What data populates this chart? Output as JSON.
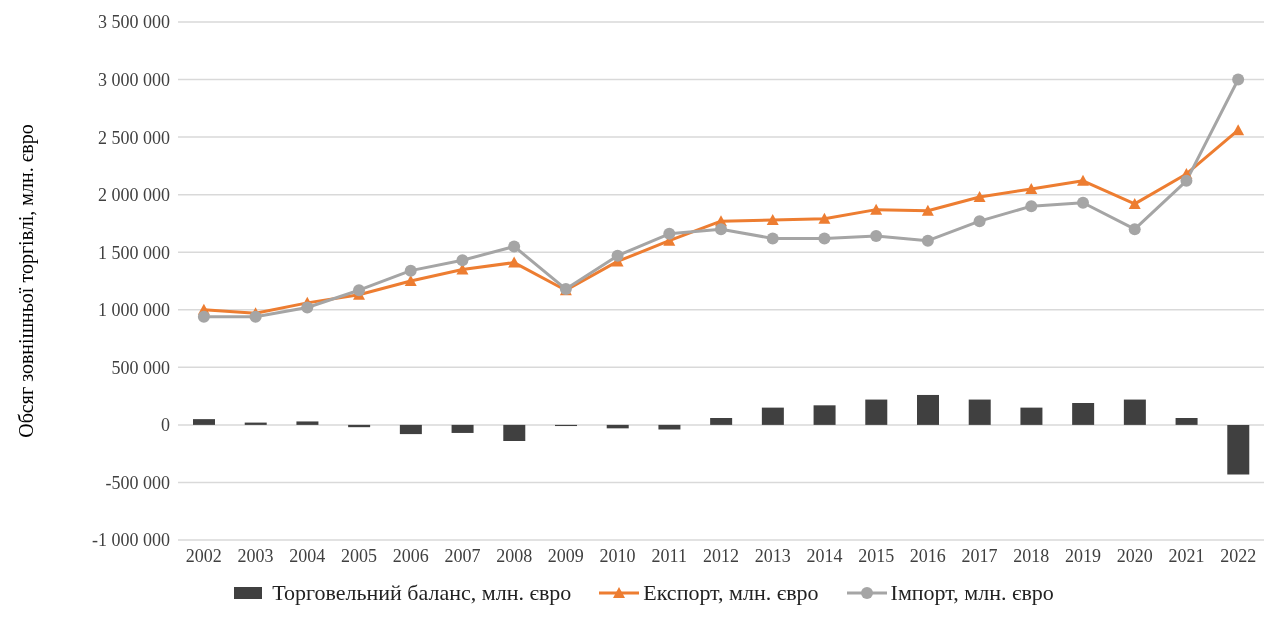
{
  "chart_data": {
    "type": "line",
    "ylabel": "Обсяг зовнішньої торгівлі, млн. євро",
    "categories": [
      "2002",
      "2003",
      "2004",
      "2005",
      "2006",
      "2007",
      "2008",
      "2009",
      "2010",
      "2011",
      "2012",
      "2013",
      "2014",
      "2015",
      "2016",
      "2017",
      "2018",
      "2019",
      "2020",
      "2021",
      "2022"
    ],
    "series": [
      {
        "name": "Торговельний баланс, млн. євро",
        "type": "bar",
        "color": "#404040",
        "values": [
          50000,
          20000,
          30000,
          -20000,
          -80000,
          -70000,
          -140000,
          -10000,
          -30000,
          -40000,
          60000,
          150000,
          170000,
          220000,
          260000,
          220000,
          150000,
          190000,
          220000,
          60000,
          -430000
        ]
      },
      {
        "name": "Експорт, млн. євро",
        "color": "#ed7d31",
        "marker": "triangle",
        "values": [
          1000000,
          970000,
          1060000,
          1130000,
          1250000,
          1350000,
          1410000,
          1170000,
          1420000,
          1600000,
          1770000,
          1780000,
          1790000,
          1870000,
          1860000,
          1980000,
          2050000,
          2120000,
          1920000,
          2180000,
          2560000
        ]
      },
      {
        "name": "Імпорт, млн. євро",
        "color": "#a5a5a5",
        "marker": "circle",
        "values": [
          940000,
          940000,
          1020000,
          1170000,
          1340000,
          1430000,
          1550000,
          1180000,
          1470000,
          1660000,
          1700000,
          1620000,
          1620000,
          1640000,
          1600000,
          1770000,
          1900000,
          1930000,
          1700000,
          2120000,
          3000000
        ]
      }
    ],
    "ylim": [
      -1000000,
      3500000
    ],
    "yticks": [
      {
        "value": -1000000,
        "label": "-1 000 000"
      },
      {
        "value": -500000,
        "label": "-500 000"
      },
      {
        "value": 0,
        "label": "0"
      },
      {
        "value": 500000,
        "label": "500 000"
      },
      {
        "value": 1000000,
        "label": "1 000 000"
      },
      {
        "value": 1500000,
        "label": "1 500 000"
      },
      {
        "value": 2000000,
        "label": "2 000 000"
      },
      {
        "value": 2500000,
        "label": "2 500 000"
      },
      {
        "value": 3000000,
        "label": "3 000 000"
      },
      {
        "value": 3500000,
        "label": "3 500 000"
      }
    ],
    "grid": "y",
    "legend": "bottom"
  }
}
